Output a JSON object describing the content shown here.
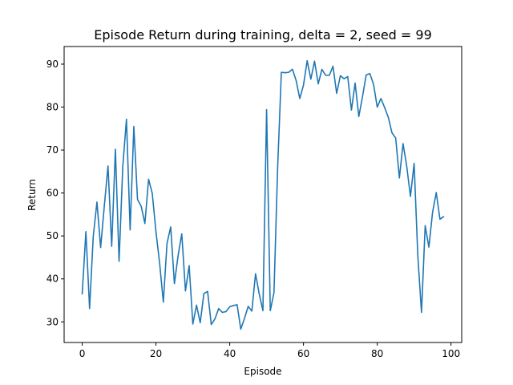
{
  "chart_data": {
    "type": "line",
    "title": "Episode Return during training, delta = 2, seed = 99",
    "xlabel": "Episode",
    "ylabel": "Return",
    "xlim": [
      -4.9,
      102.9
    ],
    "ylim": [
      25.2,
      94.1
    ],
    "xticks": [
      0,
      20,
      40,
      60,
      80,
      100
    ],
    "yticks": [
      30,
      40,
      50,
      60,
      70,
      80,
      90
    ],
    "grid": false,
    "legend": "none",
    "series": [
      {
        "color": "#1f77b4",
        "x": [
          0,
          1,
          2,
          3,
          4,
          5,
          6,
          7,
          8,
          9,
          10,
          11,
          12,
          13,
          14,
          15,
          16,
          17,
          18,
          19,
          20,
          21,
          22,
          23,
          24,
          25,
          26,
          27,
          28,
          29,
          30,
          31,
          32,
          33,
          34,
          35,
          36,
          37,
          38,
          39,
          40,
          41,
          42,
          43,
          44,
          45,
          46,
          47,
          48,
          49,
          50,
          51,
          52,
          53,
          54,
          55,
          56,
          57,
          58,
          59,
          60,
          61,
          62,
          63,
          64,
          65,
          66,
          67,
          68,
          69,
          70,
          71,
          72,
          73,
          74,
          75,
          76,
          77,
          78,
          79,
          80,
          81,
          82,
          83,
          84,
          85,
          86,
          87,
          88,
          89,
          90,
          91,
          92,
          93,
          94,
          95,
          96,
          97,
          98
        ],
        "y": [
          36.5,
          51.0,
          33.1,
          49.9,
          57.9,
          47.3,
          57.0,
          66.3,
          47.6,
          70.2,
          44.1,
          66.1,
          77.2,
          51.4,
          75.5,
          58.5,
          56.9,
          52.9,
          63.2,
          59.9,
          51.0,
          43.6,
          34.6,
          48.3,
          52.1,
          38.9,
          45.4,
          50.5,
          37.2,
          43.1,
          29.5,
          33.9,
          29.8,
          36.6,
          37.1,
          29.4,
          30.7,
          33.1,
          32.2,
          32.4,
          33.5,
          33.8,
          34.0,
          28.3,
          30.8,
          33.6,
          32.5,
          41.2,
          36.5,
          32.6,
          79.4,
          32.6,
          36.8,
          66.0,
          88.1,
          88.0,
          88.1,
          88.8,
          86.2,
          82.0,
          85.1,
          90.8,
          86.5,
          90.7,
          85.4,
          88.8,
          87.4,
          87.4,
          89.5,
          83.2,
          87.3,
          86.6,
          87.1,
          79.3,
          85.6,
          77.8,
          82.4,
          87.5,
          87.8,
          85.3,
          80.0,
          82.0,
          79.9,
          77.6,
          74.0,
          72.8,
          63.5,
          71.5,
          66.2,
          59.2,
          66.9,
          45.4,
          32.2,
          52.4,
          47.4,
          55.5,
          60.1,
          53.9,
          54.5
        ]
      }
    ]
  }
}
